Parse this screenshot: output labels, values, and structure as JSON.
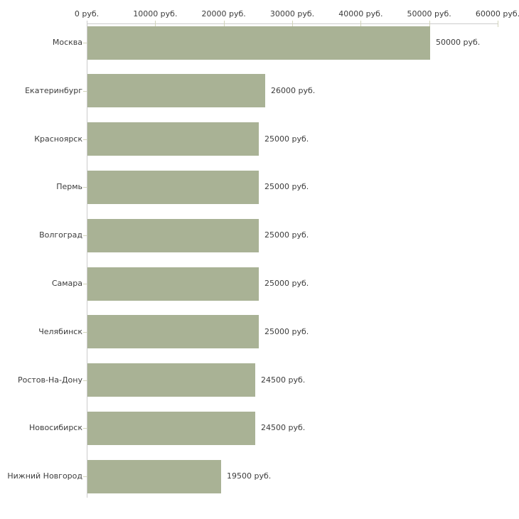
{
  "chart_data": {
    "type": "bar",
    "orientation": "horizontal",
    "title": "",
    "xlabel": "",
    "ylabel": "",
    "categories": [
      "Москва",
      "Екатеринбург",
      "Красноярск",
      "Пермь",
      "Волгоград",
      "Самара",
      "Челябинск",
      "Ростов-На-Дону",
      "Новосибирск",
      "Нижний Новгород"
    ],
    "values": [
      50000,
      26000,
      25000,
      25000,
      25000,
      25000,
      25000,
      24500,
      24500,
      19500
    ],
    "value_labels": [
      "50000 руб.",
      "26000 руб.",
      "25000 руб.",
      "25000 руб.",
      "25000 руб.",
      "25000 руб.",
      "25000 руб.",
      "24500 руб.",
      "24500 руб.",
      "19500 руб."
    ],
    "x_ticks": [
      0,
      10000,
      20000,
      30000,
      40000,
      50000,
      60000
    ],
    "x_tick_labels": [
      "0 руб.",
      "10000 руб.",
      "20000 руб.",
      "30000 руб.",
      "40000 руб.",
      "50000 руб.",
      "60000 руб."
    ],
    "xlim": [
      0,
      60000
    ],
    "grid": false,
    "legend": false,
    "colors": {
      "bar": "#a9b295",
      "axis_line": "#cccccc",
      "tick": "#d2d4ba",
      "text": "#3c3c3c",
      "background": "#ffffff"
    }
  }
}
